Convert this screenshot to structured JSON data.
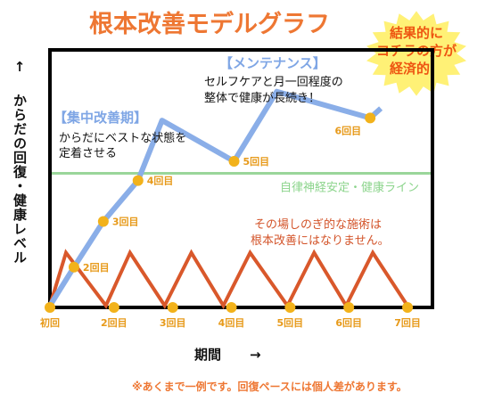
{
  "header": {
    "title": "根本改善モデルグラフ"
  },
  "badge": {
    "lines": [
      "結果的に",
      "コチラの方が",
      "経済的！"
    ],
    "color": "#fff176",
    "text_color": "#ee5511"
  },
  "chart_data": {
    "type": "line",
    "title": "根本改善モデルグラフ",
    "ylabel": "からだの回復・健康レベル",
    "xlabel": "期間",
    "y_arrow": "↑",
    "x_arrow": "→",
    "xlim": [
      0,
      7
    ],
    "ylim": [
      0,
      10
    ],
    "x_ticks": [
      {
        "x": 0,
        "label": "初回"
      },
      {
        "x": 1.2,
        "label": "2回目"
      },
      {
        "x": 2.3,
        "label": "3回目"
      },
      {
        "x": 3.4,
        "label": "4回目"
      },
      {
        "x": 4.5,
        "label": "5回目"
      },
      {
        "x": 5.6,
        "label": "6回目"
      },
      {
        "x": 6.7,
        "label": "7回目"
      }
    ],
    "reference_line": {
      "y": 5.5,
      "label": "自律神経安定・健康ライン",
      "color": "#9ad69a"
    },
    "series": [
      {
        "color": "#8aaee8",
        "x": [
          0,
          0.45,
          1.0,
          1.65,
          2.1,
          3.45,
          4.25,
          6.0,
          6.2
        ],
        "y": [
          0,
          1.6,
          3.5,
          5.2,
          7.7,
          6.0,
          8.9,
          7.8,
          8.2
        ],
        "markers": [
          {
            "index": 1,
            "label": "2回目"
          },
          {
            "index": 2,
            "label": "3回目"
          },
          {
            "index": 3,
            "label": "4回目"
          },
          {
            "index": 5,
            "label": "5回目"
          },
          {
            "index": 7,
            "label": "6回目"
          }
        ]
      },
      {
        "color": "#d9582b",
        "x": [
          0,
          0.3,
          1.05,
          1.5,
          2.15,
          2.65,
          3.25,
          3.75,
          4.45,
          4.95,
          5.55,
          6.05,
          6.7
        ],
        "y": [
          0,
          2.2,
          0,
          2.2,
          0,
          2.2,
          0,
          2.2,
          0,
          2.2,
          0,
          2.2,
          0
        ]
      }
    ],
    "baseline_markers": [
      0,
      1.2,
      2.3,
      3.4,
      4.5,
      5.6,
      6.7
    ],
    "marker_color": "#f2b21b",
    "annotations": {
      "phase1_title": "【集中改善期】",
      "phase1_lines": [
        "からだにベストな状態を",
        "定着させる"
      ],
      "phase2_title": "【メンテナンス】",
      "phase2_lines": [
        "セルフケアと月一回程度の",
        "整体で健康が長続き！"
      ],
      "warning_lines": [
        "その場しのぎ的な施術は",
        "根本改善にはなりません。"
      ]
    },
    "footnote": "※あくまで一例です。回復ペースには個人差があります。"
  }
}
